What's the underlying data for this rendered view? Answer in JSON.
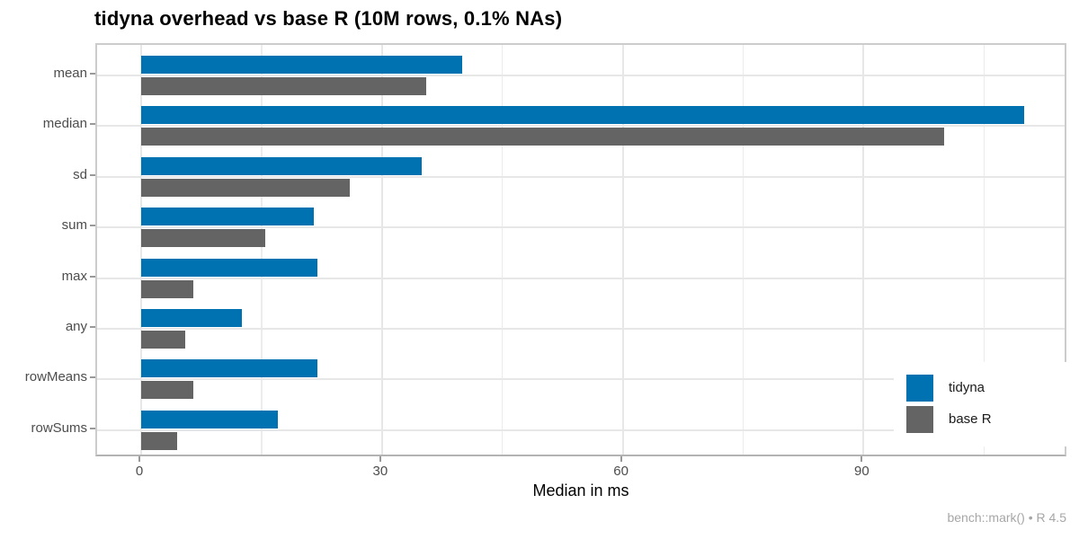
{
  "chart_data": {
    "type": "bar",
    "orientation": "horizontal",
    "title": "tidyna overhead vs base R (10M rows, 0.1% NAs)",
    "categories": [
      "mean",
      "median",
      "sd",
      "sum",
      "max",
      "any",
      "rowMeans",
      "rowSums"
    ],
    "series": [
      {
        "name": "tidyna",
        "color": "#0072B2",
        "values": [
          40,
          110,
          35,
          21.5,
          22,
          12.5,
          22,
          17
        ]
      },
      {
        "name": "base R",
        "color": "#646464",
        "values": [
          35.5,
          100,
          26,
          15.5,
          6.5,
          5.5,
          6.5,
          4.5
        ]
      }
    ],
    "xlabel": "Median in ms",
    "ylabel": "",
    "x_ticks": [
      0,
      30,
      60,
      90
    ],
    "x_minor_ticks": [
      15,
      45,
      75,
      105
    ],
    "xlim": [
      -5.5,
      115.5
    ],
    "grid": true,
    "legend_position": "inside-right",
    "caption": "bench::mark() • R 4.5"
  },
  "colors": {
    "grid_major": "#e7e7e7",
    "grid_minor": "#ececec",
    "panel_border": "#cccccc",
    "axis_line": "#b3b3b3",
    "tick_mark": "#999999",
    "axis_text": "#4d4d4d",
    "title_text": "#000000",
    "caption_text": "#a6a6a6"
  }
}
